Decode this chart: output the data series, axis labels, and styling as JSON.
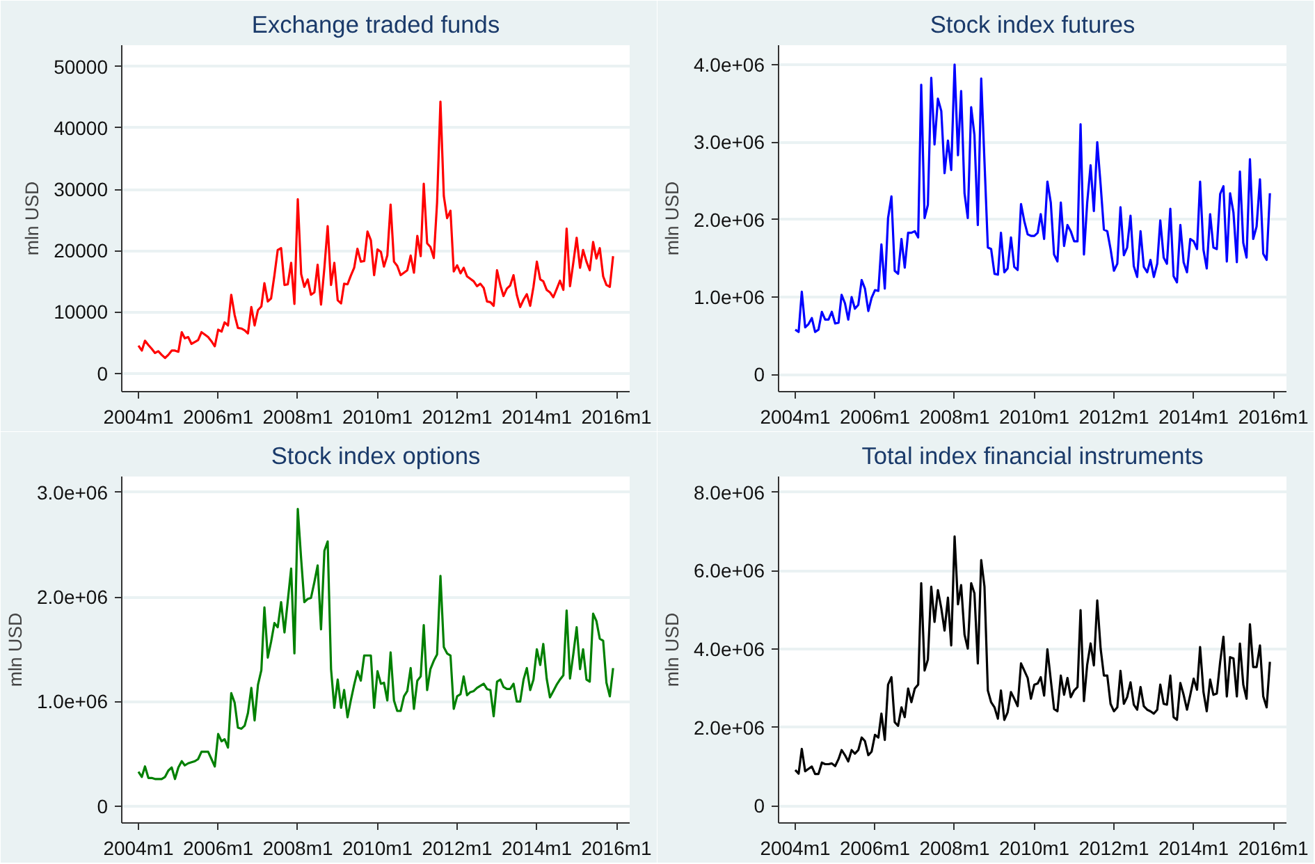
{
  "chart_data": [
    {
      "type": "line",
      "title": "Exchange traded funds",
      "ylabel": "mln USD",
      "grid": "y",
      "xlim": [
        "2003-08",
        "2016-05"
      ],
      "ylim": [
        -3000,
        53500
      ],
      "xticks": [
        {
          "value": "2004-01",
          "label": "2004m1"
        },
        {
          "value": "2006-01",
          "label": "2006m1"
        },
        {
          "value": "2008-01",
          "label": "2008m1"
        },
        {
          "value": "2010-01",
          "label": "2010m1"
        },
        {
          "value": "2012-01",
          "label": "2012m1"
        },
        {
          "value": "2014-01",
          "label": "2014m1"
        },
        {
          "value": "2016-01",
          "label": "2016m1"
        }
      ],
      "yticks": [
        0,
        10000,
        20000,
        30000,
        40000,
        50000
      ],
      "x": [
        "2004-01",
        "2004-02",
        "2004-03",
        "2004-04",
        "2004-05",
        "2004-06",
        "2004-07",
        "2004-08",
        "2004-09",
        "2004-10",
        "2004-11",
        "2004-12",
        "2005-01",
        "2005-02",
        "2005-03",
        "2005-04",
        "2005-05",
        "2005-06",
        "2005-07",
        "2005-08",
        "2005-09",
        "2005-10",
        "2005-11",
        "2005-12",
        "2006-01",
        "2006-02",
        "2006-03",
        "2006-04",
        "2006-05",
        "2006-06",
        "2006-07",
        "2006-08",
        "2006-09",
        "2006-10",
        "2006-11",
        "2006-12",
        "2007-01",
        "2007-02",
        "2007-03",
        "2007-04",
        "2007-05",
        "2007-06",
        "2007-07",
        "2007-08",
        "2007-09",
        "2007-10",
        "2007-11",
        "2007-12",
        "2008-01",
        "2008-02",
        "2008-03",
        "2008-04",
        "2008-05",
        "2008-06",
        "2008-07",
        "2008-08",
        "2008-09",
        "2008-10",
        "2008-11",
        "2008-12",
        "2009-01",
        "2009-02",
        "2009-03",
        "2009-04",
        "2009-05",
        "2009-06",
        "2009-07",
        "2009-08",
        "2009-09",
        "2009-10",
        "2009-11",
        "2009-12",
        "2010-01",
        "2010-02",
        "2010-03",
        "2010-04",
        "2010-05",
        "2010-06",
        "2010-07",
        "2010-08",
        "2010-09",
        "2010-10",
        "2010-11",
        "2010-12",
        "2011-01",
        "2011-02",
        "2011-03",
        "2011-04",
        "2011-05",
        "2011-06",
        "2011-07",
        "2011-08",
        "2011-09",
        "2011-10",
        "2011-11",
        "2011-12",
        "2012-01",
        "2012-02",
        "2012-03",
        "2012-04",
        "2012-05",
        "2012-06",
        "2012-07",
        "2012-08",
        "2012-09",
        "2012-10",
        "2012-11",
        "2012-12",
        "2013-01",
        "2013-02",
        "2013-03",
        "2013-04",
        "2013-05",
        "2013-06",
        "2013-07",
        "2013-08",
        "2013-09",
        "2013-10",
        "2013-11",
        "2013-12",
        "2014-01",
        "2014-02",
        "2014-03",
        "2014-04",
        "2014-05",
        "2014-06",
        "2014-07",
        "2014-08",
        "2014-09",
        "2014-10",
        "2014-11",
        "2014-12",
        "2015-01",
        "2015-02",
        "2015-03",
        "2015-04",
        "2015-05",
        "2015-06",
        "2015-07",
        "2015-08",
        "2015-09",
        "2015-10",
        "2015-11",
        "2015-12"
      ],
      "series": [
        {
          "color": "#ff0000",
          "values": [
            4500,
            3700,
            5300,
            4600,
            4000,
            3300,
            3600,
            3000,
            2500,
            3000,
            3700,
            3700,
            3500,
            6700,
            5700,
            5900,
            4800,
            5100,
            5400,
            6700,
            6300,
            5900,
            5200,
            4400,
            7100,
            6800,
            8300,
            7800,
            12800,
            9500,
            7400,
            7300,
            7000,
            6500,
            10800,
            7800,
            10300,
            10900,
            14700,
            11700,
            12200,
            16000,
            20100,
            20400,
            14400,
            14500,
            18000,
            11300,
            28400,
            16200,
            14100,
            15300,
            12800,
            13200,
            17700,
            11200,
            17200,
            24000,
            14400,
            18000,
            11900,
            11400,
            14600,
            14500,
            15900,
            17200,
            20300,
            18200,
            18300,
            23100,
            21700,
            16000,
            20200,
            19800,
            17400,
            19200,
            27500,
            18200,
            17500,
            16000,
            16400,
            16800,
            19200,
            16400,
            22400,
            19100,
            30900,
            21200,
            20600,
            18800,
            27800,
            44300,
            28900,
            25300,
            26500,
            16600,
            17600,
            16300,
            17200,
            15800,
            15400,
            15000,
            14200,
            14600,
            13900,
            11700,
            11600,
            11000,
            16800,
            14300,
            12600,
            13800,
            14300,
            16000,
            12800,
            10800,
            12000,
            12900,
            11000,
            14100,
            18200,
            15300,
            15000,
            13600,
            13200,
            12400,
            13700,
            15100,
            13600,
            23600,
            14200,
            18000,
            22100,
            17200,
            20100,
            18200,
            16800,
            21400,
            18700,
            20400,
            15800,
            14400,
            14100,
            19100
          ]
        }
      ]
    },
    {
      "type": "line",
      "title": "Stock index futures",
      "ylabel": "mln USD",
      "grid": "y",
      "xlim": [
        "2003-08",
        "2016-05"
      ],
      "ylim": [
        -220000,
        4250000
      ],
      "xticks": [
        {
          "value": "2004-01",
          "label": "2004m1"
        },
        {
          "value": "2006-01",
          "label": "2006m1"
        },
        {
          "value": "2008-01",
          "label": "2008m1"
        },
        {
          "value": "2010-01",
          "label": "2010m1"
        },
        {
          "value": "2012-01",
          "label": "2012m1"
        },
        {
          "value": "2014-01",
          "label": "2014m1"
        },
        {
          "value": "2016-01",
          "label": "2016m1"
        }
      ],
      "yticks": [
        0,
        {
          "value": 1000000,
          "label": "1.0e+06"
        },
        {
          "value": 2000000,
          "label": "2.0e+06"
        },
        {
          "value": 3000000,
          "label": "3.0e+06"
        },
        {
          "value": 4000000,
          "label": "4.0e+06"
        }
      ],
      "x": [
        "2004-01",
        "2004-02",
        "2004-03",
        "2004-04",
        "2004-05",
        "2004-06",
        "2004-07",
        "2004-08",
        "2004-09",
        "2004-10",
        "2004-11",
        "2004-12",
        "2005-01",
        "2005-02",
        "2005-03",
        "2005-04",
        "2005-05",
        "2005-06",
        "2005-07",
        "2005-08",
        "2005-09",
        "2005-10",
        "2005-11",
        "2005-12",
        "2006-01",
        "2006-02",
        "2006-03",
        "2006-04",
        "2006-05",
        "2006-06",
        "2006-07",
        "2006-08",
        "2006-09",
        "2006-10",
        "2006-11",
        "2006-12",
        "2007-01",
        "2007-02",
        "2007-03",
        "2007-04",
        "2007-05",
        "2007-06",
        "2007-07",
        "2007-08",
        "2007-09",
        "2007-10",
        "2007-11",
        "2007-12",
        "2008-01",
        "2008-02",
        "2008-03",
        "2008-04",
        "2008-05",
        "2008-06",
        "2008-07",
        "2008-08",
        "2008-09",
        "2008-10",
        "2008-11",
        "2008-12",
        "2009-01",
        "2009-02",
        "2009-03",
        "2009-04",
        "2009-05",
        "2009-06",
        "2009-07",
        "2009-08",
        "2009-09",
        "2009-10",
        "2009-11",
        "2009-12",
        "2010-01",
        "2010-02",
        "2010-03",
        "2010-04",
        "2010-05",
        "2010-06",
        "2010-07",
        "2010-08",
        "2010-09",
        "2010-10",
        "2010-11",
        "2010-12",
        "2011-01",
        "2011-02",
        "2011-03",
        "2011-04",
        "2011-05",
        "2011-06",
        "2011-07",
        "2011-08",
        "2011-09",
        "2011-10",
        "2011-11",
        "2011-12",
        "2012-01",
        "2012-02",
        "2012-03",
        "2012-04",
        "2012-05",
        "2012-06",
        "2012-07",
        "2012-08",
        "2012-09",
        "2012-10",
        "2012-11",
        "2012-12",
        "2013-01",
        "2013-02",
        "2013-03",
        "2013-04",
        "2013-05",
        "2013-06",
        "2013-07",
        "2013-08",
        "2013-09",
        "2013-10",
        "2013-11",
        "2013-12",
        "2014-01",
        "2014-02",
        "2014-03",
        "2014-04",
        "2014-05",
        "2014-06",
        "2014-07",
        "2014-08",
        "2014-09",
        "2014-10",
        "2014-11",
        "2014-12",
        "2015-01",
        "2015-02",
        "2015-03",
        "2015-04",
        "2015-05",
        "2015-06",
        "2015-07",
        "2015-08",
        "2015-09",
        "2015-10",
        "2015-11",
        "2015-12"
      ],
      "series": [
        {
          "color": "#0000ff",
          "values": [
            580000,
            550000,
            1070000,
            610000,
            650000,
            730000,
            550000,
            580000,
            810000,
            710000,
            710000,
            810000,
            660000,
            670000,
            1030000,
            920000,
            710000,
            1000000,
            850000,
            900000,
            1220000,
            1110000,
            820000,
            990000,
            1090000,
            1080000,
            1680000,
            1110000,
            2020000,
            2300000,
            1340000,
            1300000,
            1750000,
            1380000,
            1830000,
            1830000,
            1850000,
            1770000,
            3740000,
            2020000,
            2190000,
            3830000,
            2970000,
            3560000,
            3400000,
            2600000,
            3020000,
            2640000,
            4000000,
            2830000,
            3660000,
            2340000,
            2020000,
            3450000,
            3090000,
            1930000,
            3820000,
            2750000,
            1640000,
            1620000,
            1300000,
            1290000,
            1830000,
            1320000,
            1370000,
            1770000,
            1390000,
            1350000,
            2200000,
            1980000,
            1810000,
            1790000,
            1790000,
            1830000,
            2070000,
            1750000,
            2490000,
            2220000,
            1550000,
            1460000,
            2220000,
            1660000,
            1930000,
            1850000,
            1720000,
            1720000,
            3230000,
            1550000,
            2220000,
            2700000,
            2110000,
            3000000,
            2450000,
            1870000,
            1850000,
            1620000,
            1340000,
            1430000,
            2160000,
            1540000,
            1640000,
            2050000,
            1400000,
            1260000,
            1850000,
            1390000,
            1320000,
            1480000,
            1260000,
            1430000,
            1990000,
            1510000,
            1430000,
            2140000,
            1270000,
            1190000,
            1930000,
            1450000,
            1320000,
            1750000,
            1720000,
            1620000,
            2490000,
            1610000,
            1370000,
            2070000,
            1640000,
            1620000,
            2330000,
            2430000,
            1460000,
            2340000,
            2090000,
            1450000,
            2620000,
            1700000,
            1510000,
            2780000,
            1750000,
            1910000,
            2520000,
            1560000,
            1480000,
            2340000
          ]
        }
      ]
    },
    {
      "type": "line",
      "title": "Stock index options",
      "ylabel": "mln USD",
      "grid": "y",
      "xlim": [
        "2003-08",
        "2016-05"
      ],
      "ylim": [
        -160000,
        3150000
      ],
      "xticks": [
        {
          "value": "2004-01",
          "label": "2004m1"
        },
        {
          "value": "2006-01",
          "label": "2006m1"
        },
        {
          "value": "2008-01",
          "label": "2008m1"
        },
        {
          "value": "2010-01",
          "label": "2010m1"
        },
        {
          "value": "2012-01",
          "label": "2012m1"
        },
        {
          "value": "2014-01",
          "label": "2014m1"
        },
        {
          "value": "2016-01",
          "label": "2016m1"
        }
      ],
      "yticks": [
        0,
        {
          "value": 1000000,
          "label": "1.0e+06"
        },
        {
          "value": 2000000,
          "label": "2.0e+06"
        },
        {
          "value": 3000000,
          "label": "3.0e+06"
        }
      ],
      "x": [
        "2004-01",
        "2004-02",
        "2004-03",
        "2004-04",
        "2004-05",
        "2004-06",
        "2004-07",
        "2004-08",
        "2004-09",
        "2004-10",
        "2004-11",
        "2004-12",
        "2005-01",
        "2005-02",
        "2005-03",
        "2005-04",
        "2005-05",
        "2005-06",
        "2005-07",
        "2005-08",
        "2005-09",
        "2005-10",
        "2005-11",
        "2005-12",
        "2006-01",
        "2006-02",
        "2006-03",
        "2006-04",
        "2006-05",
        "2006-06",
        "2006-07",
        "2006-08",
        "2006-09",
        "2006-10",
        "2006-11",
        "2006-12",
        "2007-01",
        "2007-02",
        "2007-03",
        "2007-04",
        "2007-05",
        "2007-06",
        "2007-07",
        "2007-08",
        "2007-09",
        "2007-10",
        "2007-11",
        "2007-12",
        "2008-01",
        "2008-02",
        "2008-03",
        "2008-04",
        "2008-05",
        "2008-06",
        "2008-07",
        "2008-08",
        "2008-09",
        "2008-10",
        "2008-11",
        "2008-12",
        "2009-01",
        "2009-02",
        "2009-03",
        "2009-04",
        "2009-05",
        "2009-06",
        "2009-07",
        "2009-08",
        "2009-09",
        "2009-10",
        "2009-11",
        "2009-12",
        "2010-01",
        "2010-02",
        "2010-03",
        "2010-04",
        "2010-05",
        "2010-06",
        "2010-07",
        "2010-08",
        "2010-09",
        "2010-10",
        "2010-11",
        "2010-12",
        "2011-01",
        "2011-02",
        "2011-03",
        "2011-04",
        "2011-05",
        "2011-06",
        "2011-07",
        "2011-08",
        "2011-09",
        "2011-10",
        "2011-11",
        "2011-12",
        "2012-01",
        "2012-02",
        "2012-03",
        "2012-04",
        "2012-05",
        "2012-06",
        "2012-07",
        "2012-08",
        "2012-09",
        "2012-10",
        "2012-11",
        "2012-12",
        "2013-01",
        "2013-02",
        "2013-03",
        "2013-04",
        "2013-05",
        "2013-06",
        "2013-07",
        "2013-08",
        "2013-09",
        "2013-10",
        "2013-11",
        "2013-12",
        "2014-01",
        "2014-02",
        "2014-03",
        "2014-04",
        "2014-05",
        "2014-06",
        "2014-07",
        "2014-08",
        "2014-09",
        "2014-10",
        "2014-11",
        "2014-12",
        "2015-01",
        "2015-02",
        "2015-03",
        "2015-04",
        "2015-05",
        "2015-06",
        "2015-07",
        "2015-08",
        "2015-09",
        "2015-10",
        "2015-11",
        "2015-12"
      ],
      "series": [
        {
          "color": "#008000",
          "values": [
            330000,
            280000,
            380000,
            270000,
            270000,
            260000,
            260000,
            260000,
            280000,
            340000,
            370000,
            260000,
            370000,
            430000,
            390000,
            410000,
            420000,
            430000,
            450000,
            520000,
            520000,
            520000,
            450000,
            380000,
            690000,
            620000,
            640000,
            560000,
            1080000,
            990000,
            750000,
            740000,
            770000,
            890000,
            1130000,
            820000,
            1160000,
            1300000,
            1900000,
            1420000,
            1570000,
            1750000,
            1710000,
            1950000,
            1660000,
            1960000,
            2270000,
            1460000,
            2840000,
            2360000,
            1950000,
            1980000,
            1990000,
            2140000,
            2300000,
            1690000,
            2440000,
            2530000,
            1310000,
            940000,
            1210000,
            940000,
            1110000,
            850000,
            1010000,
            1160000,
            1290000,
            1200000,
            1440000,
            1440000,
            1440000,
            940000,
            1290000,
            1170000,
            1180000,
            1010000,
            1470000,
            1010000,
            910000,
            910000,
            1050000,
            1100000,
            1320000,
            930000,
            1200000,
            1240000,
            1730000,
            1110000,
            1310000,
            1390000,
            1450000,
            2200000,
            1520000,
            1460000,
            1440000,
            930000,
            1050000,
            1070000,
            1240000,
            1060000,
            1090000,
            1100000,
            1130000,
            1150000,
            1170000,
            1120000,
            1110000,
            860000,
            1190000,
            1210000,
            1140000,
            1120000,
            1120000,
            1170000,
            1000000,
            1000000,
            1210000,
            1320000,
            1110000,
            1210000,
            1500000,
            1350000,
            1550000,
            1220000,
            1040000,
            1100000,
            1160000,
            1210000,
            1250000,
            1870000,
            1220000,
            1450000,
            1710000,
            1310000,
            1500000,
            1210000,
            1190000,
            1840000,
            1770000,
            1600000,
            1580000,
            1180000,
            1050000,
            1320000
          ]
        }
      ]
    },
    {
      "type": "line",
      "title": "Total index financial instruments",
      "ylabel": "mln USD",
      "grid": "y",
      "xlim": [
        "2003-08",
        "2016-05"
      ],
      "ylim": [
        -440000,
        8400000
      ],
      "xticks": [
        {
          "value": "2004-01",
          "label": "2004m1"
        },
        {
          "value": "2006-01",
          "label": "2006m1"
        },
        {
          "value": "2008-01",
          "label": "2008m1"
        },
        {
          "value": "2010-01",
          "label": "2010m1"
        },
        {
          "value": "2012-01",
          "label": "2012m1"
        },
        {
          "value": "2014-01",
          "label": "2014m1"
        },
        {
          "value": "2016-01",
          "label": "2016m1"
        }
      ],
      "yticks": [
        0,
        {
          "value": 2000000,
          "label": "2.0e+06"
        },
        {
          "value": 4000000,
          "label": "4.0e+06"
        },
        {
          "value": 6000000,
          "label": "6.0e+06"
        },
        {
          "value": 8000000,
          "label": "8.0e+06"
        }
      ],
      "x": [
        "2004-01",
        "2004-02",
        "2004-03",
        "2004-04",
        "2004-05",
        "2004-06",
        "2004-07",
        "2004-08",
        "2004-09",
        "2004-10",
        "2004-11",
        "2004-12",
        "2005-01",
        "2005-02",
        "2005-03",
        "2005-04",
        "2005-05",
        "2005-06",
        "2005-07",
        "2005-08",
        "2005-09",
        "2005-10",
        "2005-11",
        "2005-12",
        "2006-01",
        "2006-02",
        "2006-03",
        "2006-04",
        "2006-05",
        "2006-06",
        "2006-07",
        "2006-08",
        "2006-09",
        "2006-10",
        "2006-11",
        "2006-12",
        "2007-01",
        "2007-02",
        "2007-03",
        "2007-04",
        "2007-05",
        "2007-06",
        "2007-07",
        "2007-08",
        "2007-09",
        "2007-10",
        "2007-11",
        "2007-12",
        "2008-01",
        "2008-02",
        "2008-03",
        "2008-04",
        "2008-05",
        "2008-06",
        "2008-07",
        "2008-08",
        "2008-09",
        "2008-10",
        "2008-11",
        "2008-12",
        "2009-01",
        "2009-02",
        "2009-03",
        "2009-04",
        "2009-05",
        "2009-06",
        "2009-07",
        "2009-08",
        "2009-09",
        "2009-10",
        "2009-11",
        "2009-12",
        "2010-01",
        "2010-02",
        "2010-03",
        "2010-04",
        "2010-05",
        "2010-06",
        "2010-07",
        "2010-08",
        "2010-09",
        "2010-10",
        "2010-11",
        "2010-12",
        "2011-01",
        "2011-02",
        "2011-03",
        "2011-04",
        "2011-05",
        "2011-06",
        "2011-07",
        "2011-08",
        "2011-09",
        "2011-10",
        "2011-11",
        "2011-12",
        "2012-01",
        "2012-02",
        "2012-03",
        "2012-04",
        "2012-05",
        "2012-06",
        "2012-07",
        "2012-08",
        "2012-09",
        "2012-10",
        "2012-11",
        "2012-12",
        "2013-01",
        "2013-02",
        "2013-03",
        "2013-04",
        "2013-05",
        "2013-06",
        "2013-07",
        "2013-08",
        "2013-09",
        "2013-10",
        "2013-11",
        "2013-12",
        "2014-01",
        "2014-02",
        "2014-03",
        "2014-04",
        "2014-05",
        "2014-06",
        "2014-07",
        "2014-08",
        "2014-09",
        "2014-10",
        "2014-11",
        "2014-12",
        "2015-01",
        "2015-02",
        "2015-03",
        "2015-04",
        "2015-05",
        "2015-06",
        "2015-07",
        "2015-08",
        "2015-09",
        "2015-10",
        "2015-11",
        "2015-12"
      ],
      "series": [
        {
          "color": "#000000",
          "values": [
            910000,
            820000,
            1450000,
            880000,
            940000,
            1000000,
            810000,
            810000,
            1100000,
            1060000,
            1060000,
            1080000,
            1010000,
            1190000,
            1420000,
            1290000,
            1130000,
            1420000,
            1330000,
            1420000,
            1740000,
            1650000,
            1290000,
            1380000,
            1810000,
            1740000,
            2350000,
            1680000,
            3090000,
            3280000,
            2130000,
            2040000,
            2510000,
            2260000,
            2990000,
            2640000,
            2990000,
            3090000,
            5680000,
            3450000,
            3730000,
            5590000,
            4690000,
            5500000,
            5040000,
            4470000,
            5310000,
            4090000,
            6870000,
            5140000,
            5630000,
            4370000,
            4010000,
            5680000,
            5420000,
            3630000,
            6270000,
            5590000,
            2940000,
            2640000,
            2510000,
            2220000,
            2940000,
            2190000,
            2380000,
            2900000,
            2730000,
            2540000,
            3630000,
            3450000,
            3260000,
            2730000,
            3090000,
            3120000,
            3280000,
            2810000,
            3990000,
            3210000,
            2470000,
            2410000,
            3320000,
            2830000,
            3260000,
            2770000,
            2940000,
            3030000,
            4990000,
            2670000,
            3600000,
            4140000,
            3580000,
            5240000,
            4010000,
            3320000,
            3320000,
            2600000,
            2410000,
            2510000,
            3440000,
            2600000,
            2770000,
            3150000,
            2580000,
            2450000,
            3030000,
            2540000,
            2450000,
            2410000,
            2350000,
            2450000,
            3090000,
            2600000,
            2580000,
            3320000,
            2260000,
            2190000,
            3130000,
            2830000,
            2450000,
            2830000,
            3240000,
            2960000,
            4050000,
            2900000,
            2410000,
            3220000,
            2830000,
            2860000,
            3670000,
            4310000,
            2790000,
            3790000,
            3760000,
            2790000,
            4140000,
            3090000,
            2730000,
            4630000,
            3540000,
            3540000,
            4090000,
            2790000,
            2510000,
            3670000
          ]
        }
      ]
    }
  ]
}
